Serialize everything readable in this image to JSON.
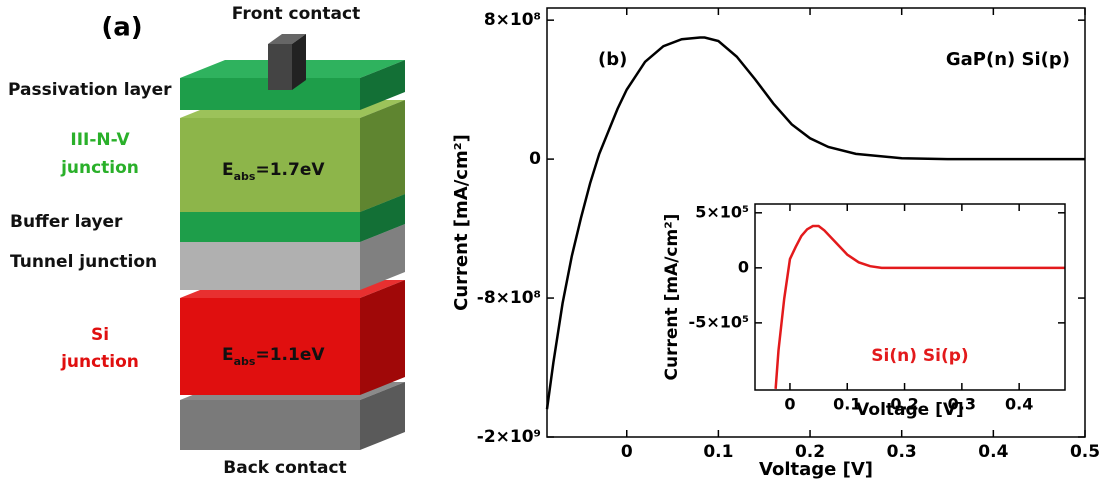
{
  "diagram": {
    "panel_label": "(a)",
    "front_contact": "Front contact",
    "passivation": "Passivation layer",
    "top_junction": [
      "III-N-V",
      "junction"
    ],
    "buffer": "Buffer layer",
    "tunnel": "Tunnel junction",
    "bottom_junction": [
      "Si",
      "junction"
    ],
    "top_energy": {
      "main": "E",
      "sub": "abs",
      "rest": "=1.7eV"
    },
    "bottom_energy": {
      "main": "E",
      "sub": "abs",
      "rest": "=1.1eV"
    },
    "back_contact": "Back contact"
  },
  "chart_data": [
    {
      "type": "line",
      "x_label": "Voltage [V]",
      "y_label": "Current [mA/cm²]",
      "annotations": [
        "(b)",
        "GaP(n) Si(p)"
      ],
      "color": "#000000",
      "x": [
        -0.087,
        -0.08,
        -0.07,
        -0.06,
        -0.05,
        -0.04,
        -0.03,
        -0.02,
        -0.01,
        0,
        0.02,
        0.04,
        0.06,
        0.08,
        0.085,
        0.1,
        0.12,
        0.14,
        0.16,
        0.18,
        0.2,
        0.22,
        0.25,
        0.3,
        0.35,
        0.4,
        0.5
      ],
      "values": [
        -1440000000,
        -1170000000,
        -830000000,
        -560000000,
        -340000000,
        -140000000,
        30000000,
        160000000,
        290000000,
        400000000,
        560000000,
        650000000,
        690000000,
        700000000,
        700000000,
        680000000,
        590000000,
        460000000,
        320000000,
        200000000,
        120000000,
        70000000,
        30000000,
        5000000,
        0,
        0,
        0
      ],
      "xlim": [
        -0.087,
        0.5
      ],
      "xticks": [
        0,
        0.1,
        0.2,
        0.3,
        0.4,
        0.5
      ],
      "ylim": [
        -1600000000,
        870000000
      ],
      "yticks": [
        {
          "value": -1600000000,
          "label": "-2×10⁹"
        },
        {
          "value": -800000000,
          "label": "-8×10⁸"
        },
        0,
        {
          "value": 800000000,
          "label": "8×10⁸"
        }
      ]
    },
    {
      "type": "line",
      "x_label": "Voltage [V]",
      "y_label": "Current [mA/cm²]",
      "annotations": [
        "Si(n) Si(p)"
      ],
      "color": "#e31a1c",
      "x": [
        -0.025,
        -0.02,
        -0.01,
        0,
        0.01,
        0.02,
        0.03,
        0.04,
        0.05,
        0.06,
        0.08,
        0.1,
        0.12,
        0.14,
        0.16,
        0.2,
        0.3,
        0.48
      ],
      "values": [
        -1100000,
        -750000,
        -280000,
        80000,
        190000,
        290000,
        350000,
        380000,
        380000,
        340000,
        230000,
        120000,
        50000,
        15000,
        0,
        0,
        0,
        0
      ],
      "xlim": [
        -0.061,
        0.48
      ],
      "xticks": [
        0,
        0.1,
        0.2,
        0.3,
        0.4
      ],
      "ylim": [
        -1110000,
        580000
      ],
      "yticks": [
        {
          "value": -500000,
          "label": "-5×10⁵"
        },
        0,
        {
          "value": 500000,
          "label": "5×10⁵"
        }
      ]
    }
  ]
}
